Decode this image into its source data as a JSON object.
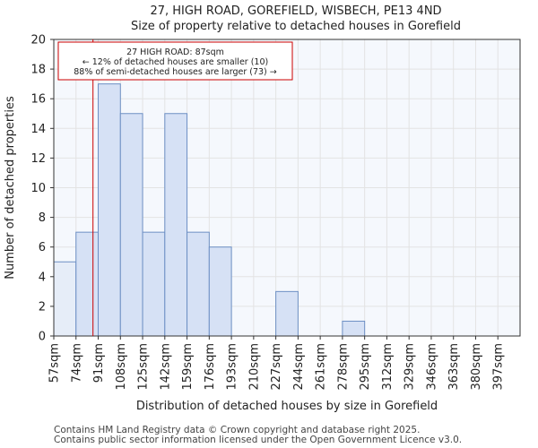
{
  "chart_data": {
    "type": "bar",
    "title": "27, HIGH ROAD, GOREFIELD, WISBECH, PE13 4ND",
    "subtitle": "Size of property relative to detached houses in Gorefield",
    "xlabel": "Distribution of detached houses by size in Gorefield",
    "ylabel": "Number of detached properties",
    "categories": [
      "57sqm",
      "74sqm",
      "91sqm",
      "108sqm",
      "125sqm",
      "142sqm",
      "159sqm",
      "176sqm",
      "193sqm",
      "210sqm",
      "227sqm",
      "244sqm",
      "261sqm",
      "278sqm",
      "295sqm",
      "312sqm",
      "329sqm",
      "346sqm",
      "363sqm",
      "380sqm",
      "397sqm"
    ],
    "bin_edges": [
      57,
      74,
      91,
      108,
      125,
      142,
      159,
      176,
      193,
      210,
      227,
      244,
      261,
      278,
      295,
      312,
      329,
      346,
      363,
      380,
      397,
      414
    ],
    "values": [
      5,
      7,
      17,
      15,
      7,
      15,
      7,
      6,
      0,
      0,
      3,
      0,
      0,
      1,
      0,
      0,
      0,
      0,
      0,
      0,
      0
    ],
    "ylim": [
      0,
      20
    ],
    "yticks": [
      0,
      2,
      4,
      6,
      8,
      10,
      12,
      14,
      16,
      18,
      20
    ],
    "grid": true,
    "marker": {
      "value": 87,
      "color": "#cc0000",
      "label_lines": [
        "27 HIGH ROAD: 87sqm",
        "← 12% of detached houses are smaller (10)",
        "88% of semi-detached houses are larger (73) →"
      ]
    },
    "colors": {
      "bar_fill": "#d6e1f5",
      "bar_fill_light": "#e6edf8",
      "bar_edge": "#6d8fc4",
      "grid": "#e3e3e3",
      "plot_bg": "#f5f8fd"
    }
  },
  "footer": {
    "line1": "Contains HM Land Registry data © Crown copyright and database right 2025.",
    "line2": "Contains public sector information licensed under the Open Government Licence v3.0."
  }
}
